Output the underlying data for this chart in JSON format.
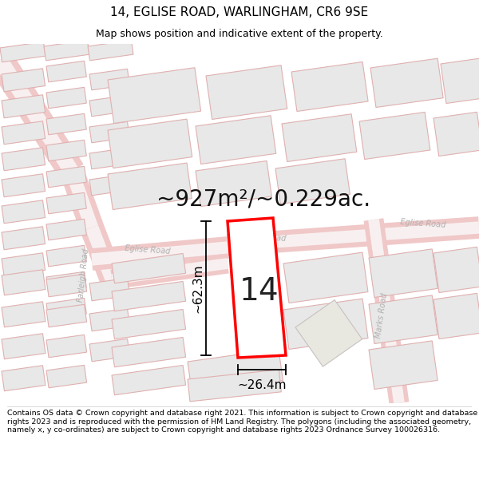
{
  "title": "14, EGLISE ROAD, WARLINGHAM, CR6 9SE",
  "subtitle": "Map shows position and indicative extent of the property.",
  "area_text": "~927m²/~0.229ac.",
  "width_label": "~26.4m",
  "height_label": "~62.3m",
  "number_label": "14",
  "footer_text": "Contains OS data © Crown copyright and database right 2021. This information is subject to Crown copyright and database rights 2023 and is reproduced with the permission of HM Land Registry. The polygons (including the associated geometry, namely x, y co-ordinates) are subject to Crown copyright and database rights 2023 Ordnance Survey 100026316.",
  "bg_color": "#ffffff",
  "map_bg": "#ffffff",
  "road_color": "#f0c8c8",
  "road_gray": "#d0d0d0",
  "building_fill": "#e8e8e8",
  "building_stroke": "#e0b0b0",
  "highlight_fill": "#ffffff",
  "highlight_stroke": "#ff0000",
  "road_label_color": "#b0b0b0",
  "dim_line_color": "#000000",
  "title_color": "#000000",
  "footer_color": "#000000",
  "area_text_color": "#111111"
}
